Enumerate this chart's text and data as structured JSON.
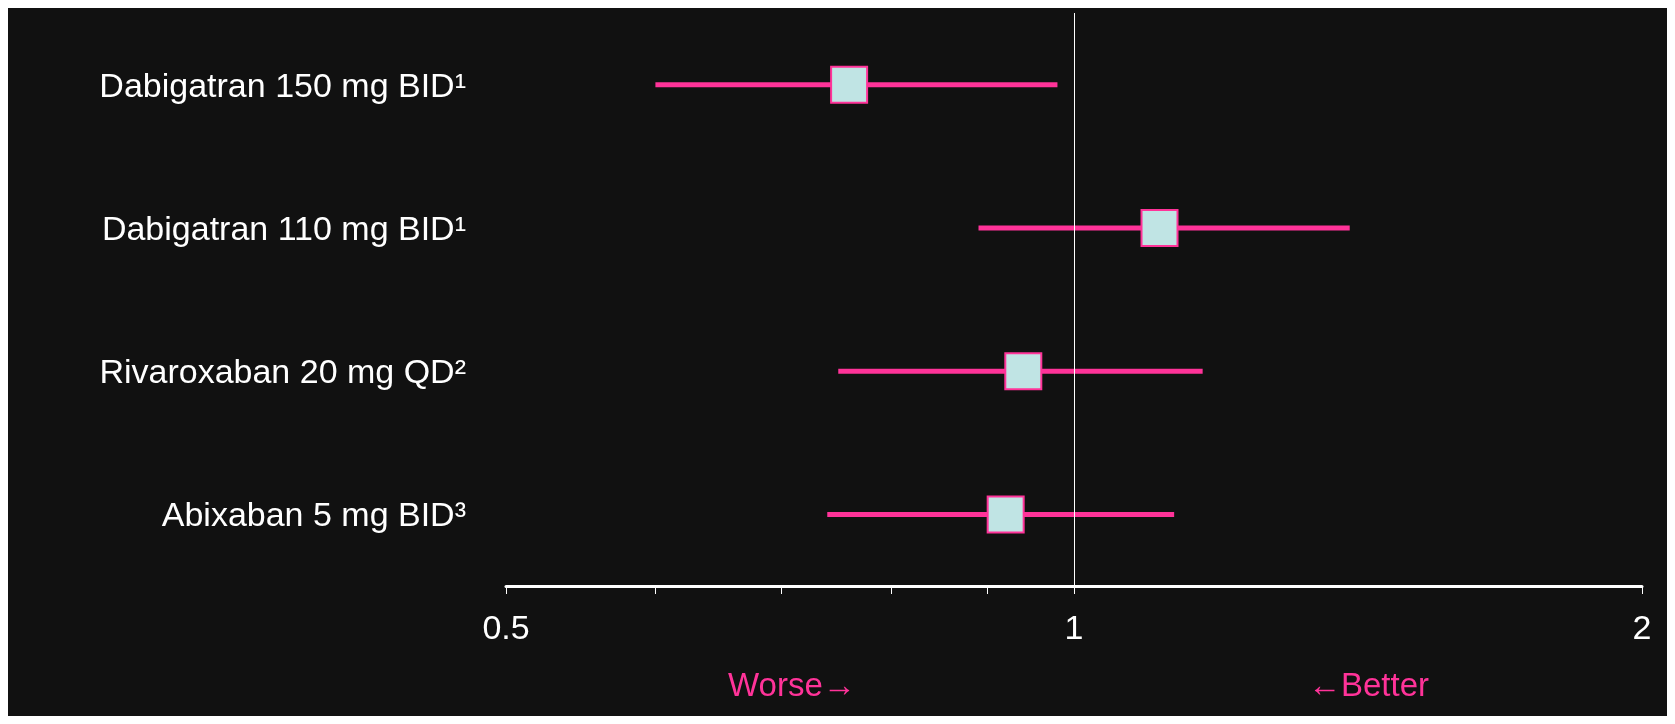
{
  "chart_data": {
    "type": "scatter",
    "orientation": "horizontal",
    "categories": [
      "Dabigatran 150 mg BID¹",
      "Dabigatran 110 mg BID¹",
      "Rivaroxaban 20 mg QD²",
      "Abixaban 5 mg BID³"
    ],
    "series": [
      {
        "color": "#c0e4e4",
        "values": [
          0.76,
          1.11,
          0.94,
          0.92
        ],
        "errors": [
          [
            0.6,
            0.98
          ],
          [
            0.89,
            1.4
          ],
          [
            0.75,
            1.17
          ],
          [
            0.74,
            1.13
          ]
        ]
      }
    ],
    "xlim": [
      0.5,
      2
    ],
    "xticks": [
      0.5,
      {
        "value": 0.6,
        "label": null
      },
      {
        "value": 0.7,
        "label": null
      },
      {
        "value": 0.8,
        "label": null
      },
      {
        "value": 0.9,
        "label": null
      },
      1,
      2
    ],
    "log": "x",
    "marker": "square",
    "grid": false,
    "ref_lines": [
      {
        "axis": "x",
        "value": 1,
        "color": "#ffffff"
      }
    ],
    "annotations": [
      "Worse→",
      "←Better"
    ]
  }
}
